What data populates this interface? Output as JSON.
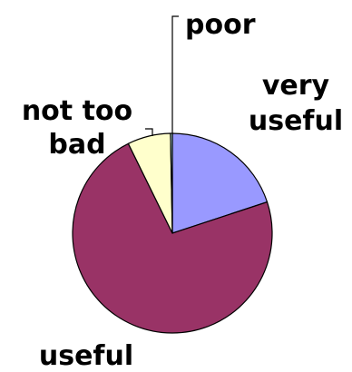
{
  "chart_data": {
    "type": "pie",
    "title": "",
    "categories": [
      "very useful",
      "useful",
      "not too bad",
      "poor"
    ],
    "values": [
      20,
      73,
      7,
      0.3
    ],
    "colors": [
      "#9999ff",
      "#993366",
      "#ffffcc",
      "#ccffff"
    ],
    "label_lines": [
      [
        "very",
        "useful"
      ],
      [
        "useful"
      ],
      [
        "not too",
        "bad"
      ],
      [
        "poor"
      ]
    ],
    "start_angle_deg": 0,
    "direction": "clockwise",
    "legend": "none"
  }
}
